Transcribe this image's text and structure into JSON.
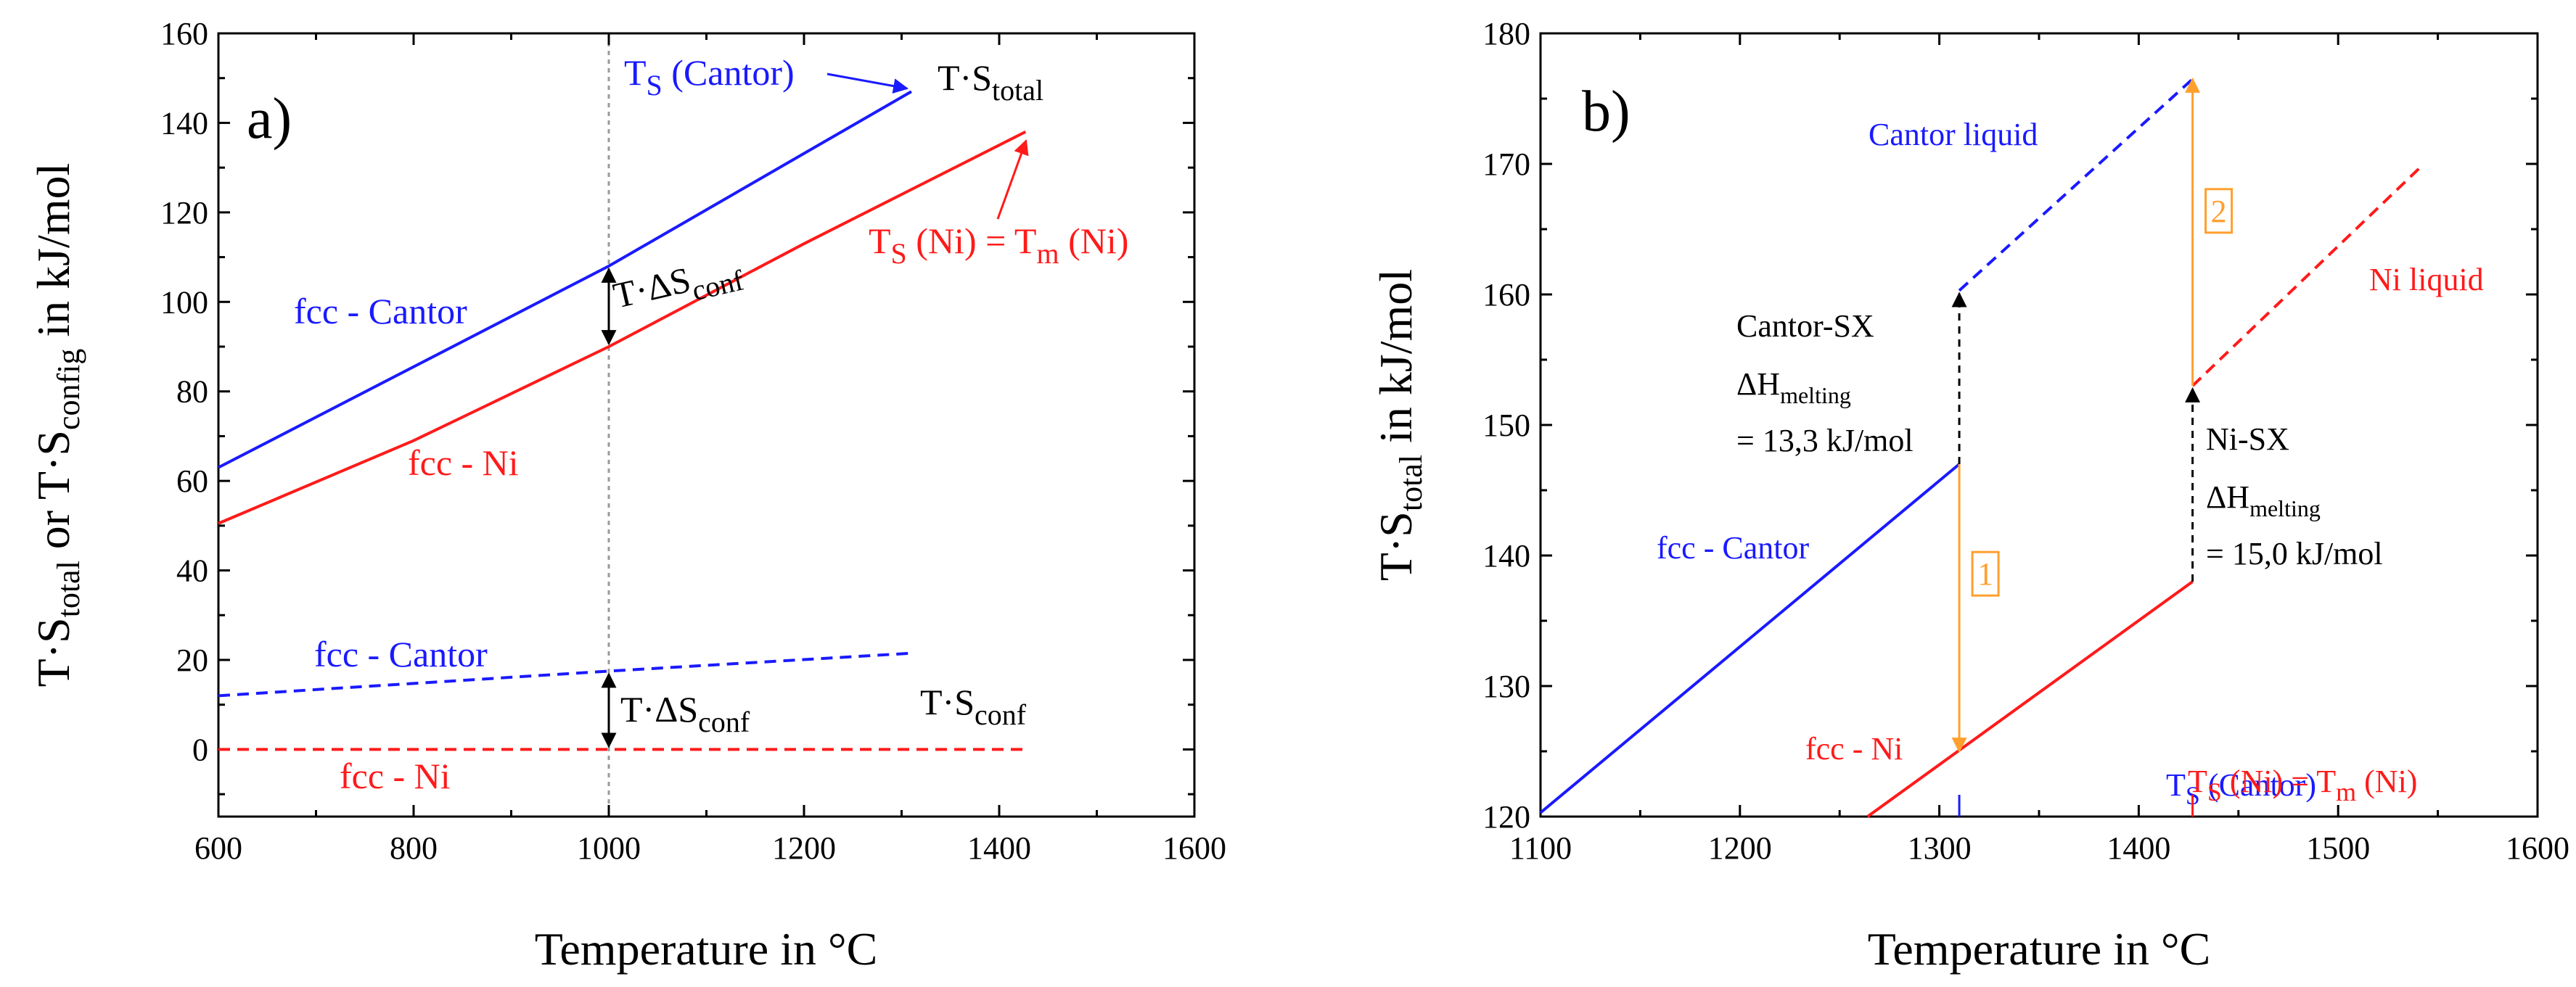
{
  "colors": {
    "cantor": "#1a1aff",
    "ni": "#ff1a1a",
    "transition": "#ff9f2e",
    "black": "#000000",
    "vline": "#9a9a9a"
  },
  "chart_data": [
    {
      "panel": "a)",
      "type": "line",
      "xlabel": "Temperature in °C",
      "ylabel": {
        "a": "T·S",
        "a_sub": "total",
        "b": " or T·S",
        "b_sub": "config",
        "c": " in kJ/mol"
      },
      "xlim": [
        600,
        1600
      ],
      "ylim": [
        -15,
        160
      ],
      "xticks": [
        600,
        800,
        1000,
        1200,
        1400,
        1600
      ],
      "yticks": [
        0,
        20,
        40,
        60,
        80,
        100,
        120,
        140,
        160
      ],
      "vline_x": 1000,
      "series": [
        {
          "name": "fcc - Cantor (T·S total)",
          "color": "cantor",
          "dash": false,
          "x": [
            600,
            1000,
            1310
          ],
          "y": [
            63,
            108,
            147
          ]
        },
        {
          "name": "fcc - Ni (T·S total)",
          "color": "ni",
          "dash": false,
          "x": [
            600,
            800,
            1000,
            1200,
            1427
          ],
          "y": [
            50.5,
            69,
            90,
            113,
            138
          ]
        },
        {
          "name": "fcc - Cantor (T·S conf)",
          "color": "cantor",
          "dash": true,
          "x": [
            600,
            1000,
            1310
          ],
          "y": [
            12,
            17.5,
            21.5
          ]
        },
        {
          "name": "fcc - Ni (T·S conf)",
          "color": "ni",
          "dash": true,
          "x": [
            600,
            1427
          ],
          "y": [
            0,
            0
          ]
        }
      ],
      "delta_arrows": [
        {
          "x": 1000,
          "y_from": 90,
          "y_to": 108,
          "label": {
            "pre": "T·ΔS",
            "sub": "conf"
          }
        },
        {
          "x": 1000,
          "y_from": 0,
          "y_to": 17.5,
          "label": {
            "pre": "T·ΔS",
            "sub": "conf"
          }
        }
      ],
      "labels": {
        "fcc_cantor_upper": "fcc - Cantor",
        "fcc_ni_upper": "fcc - Ni",
        "fcc_cantor_lower": "fcc - Cantor",
        "fcc_ni_lower": "fcc - Ni",
        "ts_total": {
          "pre": "T·S",
          "sub": "total"
        },
        "ts_conf": {
          "pre": "T·S",
          "sub": "conf"
        },
        "ts_cantor": {
          "pre": "T",
          "sub": "S",
          "post": " (Cantor)"
        },
        "ts_ni": {
          "pre": "T",
          "sub": "S",
          "mid": " (Ni) = T",
          "sub2": "m",
          "post": " (Ni)"
        }
      }
    },
    {
      "panel": "b)",
      "type": "line",
      "xlabel": "Temperature in °C",
      "ylabel": {
        "a": "T·S",
        "a_sub": "total",
        "c": " in kJ/mol"
      },
      "xlim": [
        1100,
        1600
      ],
      "ylim": [
        120,
        180
      ],
      "xticks": [
        1100,
        1200,
        1300,
        1400,
        1500,
        1600
      ],
      "yticks": [
        120,
        130,
        140,
        150,
        160,
        170,
        180
      ],
      "series": [
        {
          "name": "fcc - Cantor",
          "color": "cantor",
          "dash": false,
          "x": [
            1100,
            1310
          ],
          "y": [
            120.3,
            147
          ]
        },
        {
          "name": "Cantor liquid",
          "color": "cantor",
          "dash": true,
          "x": [
            1310,
            1427
          ],
          "y": [
            160.3,
            176.5
          ]
        },
        {
          "name": "fcc - Ni",
          "color": "ni",
          "dash": false,
          "x": [
            1264,
            1427
          ],
          "y": [
            120,
            138
          ]
        },
        {
          "name": "Ni liquid",
          "color": "ni",
          "dash": true,
          "x": [
            1427,
            1543
          ],
          "y": [
            153,
            170
          ]
        }
      ],
      "melting_steps": [
        {
          "x": 1310,
          "y_from": 147,
          "y_to": 160.3
        },
        {
          "x": 1427,
          "y_from": 138,
          "y_to": 153
        }
      ],
      "transitions": [
        {
          "x": 1310,
          "y_from": 147,
          "y_to": 125,
          "label": "1",
          "label_y": 138.6
        },
        {
          "x": 1427,
          "y_from": 153,
          "y_to": 176.5,
          "label": "2",
          "label_y": 166.4
        }
      ],
      "labels": {
        "cantor_liquid": "Cantor liquid",
        "ni_liquid": "Ni liquid",
        "fcc_cantor": "fcc - Cantor",
        "fcc_ni": "fcc - Ni",
        "cantor_sx": {
          "title": "Cantor-SX",
          "dh": "ΔH",
          "dh_sub": "melting",
          "value": "= 13,3 kJ/mol"
        },
        "ni_sx": {
          "title": "Ni-SX",
          "dh": "ΔH",
          "dh_sub": "melting",
          "value": "= 15,0 kJ/mol"
        },
        "ts_cantor": {
          "pre": "T",
          "sub": "S",
          "post": " (Cantor)"
        },
        "ts_ni": {
          "pre": "T",
          "sub": "S",
          "mid": " (Ni) = T",
          "sub2": "m",
          "post": " (Ni)"
        }
      }
    }
  ]
}
